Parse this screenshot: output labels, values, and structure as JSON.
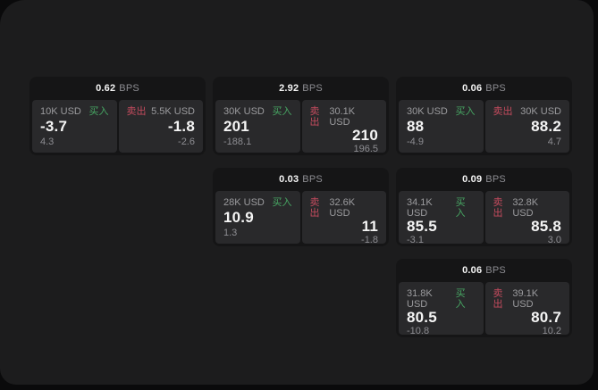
{
  "colors": {
    "outer_bg": "#0a0a0b",
    "window_bg": "#1c1c1d",
    "card_bg": "#151516",
    "panel_bg": "#29292b",
    "text_primary": "#f5f5f5",
    "text_secondary": "#9b9b9e",
    "text_muted": "#8d8d92",
    "buy_green": "#47a663",
    "sell_red": "#c44b5e"
  },
  "labels": {
    "bps": "BPS",
    "buy": "买入",
    "sell": "卖出"
  },
  "cards": [
    {
      "row": 1,
      "col": 1,
      "bps": "0.62",
      "buy": {
        "amount": "10K USD",
        "value": "-3.7",
        "delta": "4.3"
      },
      "sell": {
        "amount": "5.5K USD",
        "value": "-1.8",
        "delta": "-2.6"
      }
    },
    {
      "row": 1,
      "col": 2,
      "bps": "2.92",
      "buy": {
        "amount": "30K USD",
        "value": "201",
        "delta": "-188.1"
      },
      "sell": {
        "amount": "30.1K USD",
        "value": "210",
        "delta": "196.5"
      }
    },
    {
      "row": 1,
      "col": 3,
      "bps": "0.06",
      "buy": {
        "amount": "30K USD",
        "value": "88",
        "delta": "-4.9"
      },
      "sell": {
        "amount": "30K USD",
        "value": "88.2",
        "delta": "4.7"
      }
    },
    {
      "row": 2,
      "col": 2,
      "bps": "0.03",
      "buy": {
        "amount": "28K USD",
        "value": "10.9",
        "delta": "1.3"
      },
      "sell": {
        "amount": "32.6K USD",
        "value": "11",
        "delta": "-1.8"
      }
    },
    {
      "row": 2,
      "col": 3,
      "bps": "0.09",
      "buy": {
        "amount": "34.1K USD",
        "value": "85.5",
        "delta": "-3.1"
      },
      "sell": {
        "amount": "32.8K USD",
        "value": "85.8",
        "delta": "3.0"
      }
    },
    {
      "row": 3,
      "col": 3,
      "bps": "0.06",
      "buy": {
        "amount": "31.8K USD",
        "value": "80.5",
        "delta": "-10.8"
      },
      "sell": {
        "amount": "39.1K USD",
        "value": "80.7",
        "delta": "10.2"
      }
    }
  ]
}
